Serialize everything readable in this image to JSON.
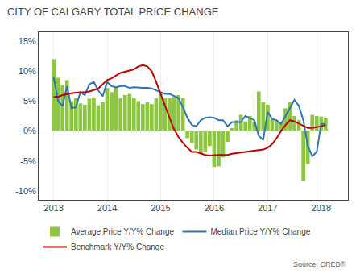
{
  "chart_data": {
    "type": "bar",
    "title": "CITY OF CALGARY TOTAL PRICE CHANGE",
    "annotations": [
      "Source: CREB®"
    ],
    "x": [
      2013,
      2013.0833333333333,
      2013.1666666666667,
      2013.25,
      2013.3333333333333,
      2013.4166666666667,
      2013.5,
      2013.5833333333333,
      2013.6666666666667,
      2013.75,
      2013.8333333333333,
      2013.9166666666667,
      2014,
      2014.0833333333333,
      2014.1666666666667,
      2014.25,
      2014.3333333333333,
      2014.4166666666667,
      2014.5,
      2014.5833333333333,
      2014.6666666666667,
      2014.75,
      2014.8333333333333,
      2014.9166666666667,
      2015,
      2015.0833333333333,
      2015.1666666666667,
      2015.25,
      2015.3333333333333,
      2015.4166666666667,
      2015.5,
      2015.5833333333333,
      2015.6666666666667,
      2015.75,
      2015.8333333333333,
      2015.9166666666667,
      2016,
      2016.0833333333333,
      2016.1666666666667,
      2016.25,
      2016.3333333333333,
      2016.4166666666667,
      2016.5,
      2016.5833333333333,
      2016.6666666666667,
      2016.75,
      2016.8333333333333,
      2016.9166666666667,
      2017,
      2017.0833333333333,
      2017.1666666666667,
      2017.25,
      2017.3333333333333,
      2017.4166666666667,
      2017.5,
      2017.5833333333333,
      2017.6666666666667,
      2017.75,
      2017.8333333333333,
      2017.9166666666667,
      2018,
      2018.0833333333333
    ],
    "series": [
      {
        "name": "Average Price Y/Y% Change",
        "type": "bar",
        "color": "#8DC63F",
        "values": [
          0.12,
          0.089,
          0.076,
          0.085,
          0.05,
          0.055,
          0.046,
          0.044,
          0.054,
          0.055,
          0.043,
          0.048,
          0.072,
          0.065,
          0.073,
          0.055,
          0.06,
          0.062,
          0.055,
          0.05,
          0.045,
          0.048,
          0.045,
          0.055,
          0.062,
          0.055,
          0.055,
          0.057,
          0.06,
          0.055,
          -0.012,
          -0.02,
          -0.031,
          -0.038,
          -0.035,
          -0.025,
          -0.06,
          -0.059,
          -0.044,
          -0.018,
          0.005,
          0.018,
          0.027,
          0.016,
          0.025,
          0.016,
          0.066,
          0.048,
          0.044,
          0.019,
          0.017,
          0.014,
          0.038,
          0.048,
          0.025,
          0.018,
          -0.083,
          -0.055,
          0.027,
          0.025,
          0.024,
          0.022
        ]
      },
      {
        "name": "Median Price Y/Y% Change",
        "type": "line",
        "color": "#2E75B6",
        "values": [
          0.09,
          0.05,
          0.042,
          0.075,
          0.038,
          0.04,
          0.065,
          0.06,
          0.078,
          0.082,
          0.068,
          0.058,
          0.082,
          0.075,
          0.073,
          0.075,
          0.075,
          0.072,
          0.073,
          0.072,
          0.072,
          0.072,
          0.071,
          0.068,
          0.065,
          0.062,
          0.062,
          0.058,
          0.055,
          0.04,
          0.022,
          0.01,
          0.008,
          0.018,
          0.022,
          0.023,
          0.022,
          0.018,
          0.018,
          0.008,
          0.015,
          0.015,
          0.015,
          0.025,
          0.022,
          0.018,
          -0.008,
          -0.015,
          0.032,
          0.02,
          0.018,
          0.012,
          0.025,
          0.038,
          0.052,
          0.042,
          0.018,
          -0.025,
          -0.042,
          -0.035,
          0.012,
          0.012
        ]
      },
      {
        "name": "Benchmark Y/Y% Change",
        "type": "line",
        "color": "#C00000",
        "values": [
          0.057,
          0.057,
          0.06,
          0.062,
          0.063,
          0.064,
          0.064,
          0.065,
          0.066,
          0.068,
          0.071,
          0.078,
          0.085,
          0.088,
          0.093,
          0.097,
          0.099,
          0.101,
          0.103,
          0.108,
          0.11,
          0.108,
          0.1,
          0.082,
          0.063,
          0.042,
          0.022,
          0.003,
          -0.01,
          -0.02,
          -0.028,
          -0.035,
          -0.035,
          -0.038,
          -0.04,
          -0.041,
          -0.04,
          -0.04,
          -0.04,
          -0.04,
          -0.038,
          -0.037,
          -0.036,
          -0.035,
          -0.034,
          -0.033,
          -0.032,
          -0.031,
          -0.028,
          -0.022,
          -0.012,
          0.0,
          0.01,
          0.018,
          0.016,
          0.012,
          0.008,
          0.005,
          0.005,
          0.006,
          0.008,
          0.01
        ]
      }
    ],
    "xlim": [
      2012.72,
      2018.5
    ],
    "xticks": [
      2013,
      2014,
      2015,
      2016,
      2017,
      2018
    ],
    "ylim": [
      -0.115,
      0.165
    ],
    "yticks": [
      {
        "value": -0.1,
        "label": "-10%"
      },
      {
        "value": -0.05,
        "label": "-5%"
      },
      {
        "value": 0,
        "label": "0%"
      },
      {
        "value": 0.05,
        "label": "5%"
      },
      {
        "value": 0.1,
        "label": "10%"
      },
      {
        "value": 0.15,
        "label": "15%"
      }
    ],
    "grid": "x",
    "legend": "bottom"
  }
}
